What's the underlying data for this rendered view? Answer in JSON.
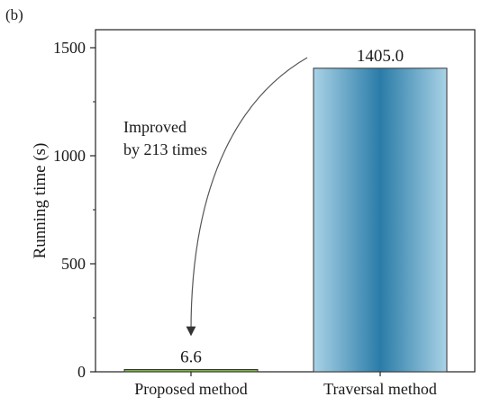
{
  "panel_label": "(b)",
  "chart_data": {
    "type": "bar",
    "categories": [
      "Proposed method",
      "Traversal method"
    ],
    "values": [
      6.6,
      1405.0
    ],
    "data_labels": [
      "6.6",
      "1405.0"
    ],
    "ylabel": "Running time (s)",
    "xlabel": "",
    "ylim": [
      0,
      1600
    ],
    "yticks": [
      0,
      500,
      1000,
      1500
    ],
    "grid": false,
    "legend": "none",
    "annotation": {
      "lines": [
        "Improved",
        "by 213 times"
      ],
      "arrow_from": "Traversal method",
      "arrow_to": "Proposed method"
    },
    "colors": {
      "proposed_fill": "#7cb342",
      "traversal_edge": "#a9d2e6",
      "traversal_center": "#2a7ca8",
      "bar_stroke": "#333333",
      "axis": "#222222"
    }
  }
}
